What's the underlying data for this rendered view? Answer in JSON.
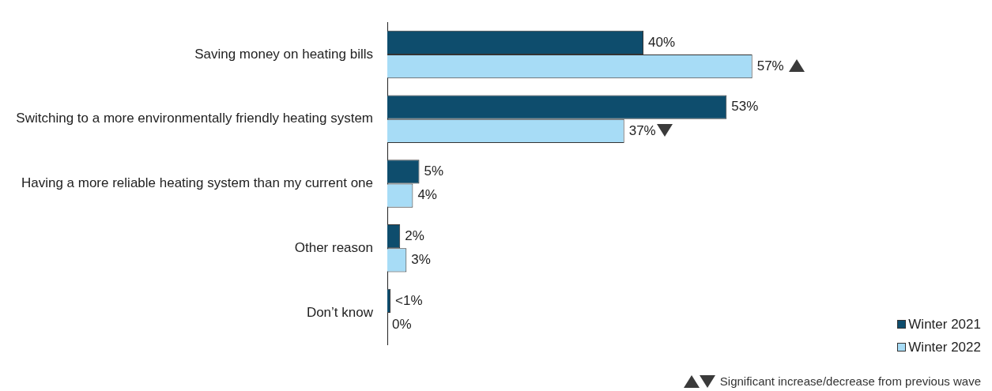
{
  "chart_data": {
    "type": "bar",
    "orientation": "horizontal",
    "categories": [
      "Saving money on heating bills",
      "Switching to a more environmentally friendly heating system",
      "Having a more reliable heating system than my current one",
      "Other reason",
      "Don’t know"
    ],
    "series": [
      {
        "name": "Winter 2021",
        "color": "#0e4d6d",
        "values": [
          40,
          53,
          5,
          2,
          0.5
        ],
        "value_labels": [
          "40%",
          "53%",
          "5%",
          "2%",
          "<1%"
        ]
      },
      {
        "name": "Winter 2022",
        "color": "#a7dcf6",
        "values": [
          57,
          37,
          4,
          3,
          0
        ],
        "value_labels": [
          "57%",
          "37%",
          "4%",
          "3%",
          "0%"
        ]
      }
    ],
    "tick_labels": "y",
    "grid": false,
    "legend": "bottom right",
    "annotations": [
      "Significant increase/decrease from previous wave"
    ]
  }
}
